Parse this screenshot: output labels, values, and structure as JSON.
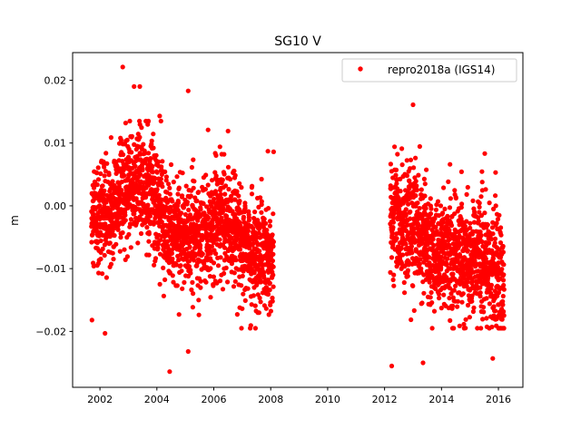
{
  "chart_data": {
    "type": "scatter",
    "title": "SG10 V",
    "xlabel": "",
    "ylabel": "m",
    "xlim": [
      2001.04,
      2016.86
    ],
    "ylim": [
      -0.0289,
      0.0244
    ],
    "xticks": [
      2002,
      2004,
      2006,
      2008,
      2010,
      2012,
      2014,
      2016
    ],
    "xtick_labels": [
      "2002",
      "2004",
      "2006",
      "2008",
      "2010",
      "2012",
      "2014",
      "2016"
    ],
    "yticks": [
      0.02,
      0.01,
      0.0,
      -0.01,
      -0.02
    ],
    "ytick_labels": [
      "0.02",
      "0.01",
      "0.00",
      "−0.01",
      "−0.02"
    ],
    "grid": false,
    "legend": {
      "placement": "top-right",
      "entries": [
        "repro2018a (IGS14)"
      ]
    },
    "series": [
      {
        "name": "repro2018a (IGS14)",
        "color": "#ff0000",
        "note_segments": "daily position residuals summarised as segments (start, end, mean_start, mean_end, std)",
        "segments": [
          [
            2001.7,
            2002.5,
            -0.003,
            -0.001,
            0.0042
          ],
          [
            2002.5,
            2003.4,
            0.001,
            0.004,
            0.0042
          ],
          [
            2003.4,
            2004.2,
            0.004,
            0.0,
            0.0045
          ],
          [
            2004.2,
            2006.0,
            -0.004,
            -0.005,
            0.0042
          ],
          [
            2006.0,
            2006.9,
            -0.002,
            -0.003,
            0.0045
          ],
          [
            2006.9,
            2008.1,
            -0.006,
            -0.009,
            0.0045
          ],
          [
            2012.2,
            2013.5,
            -0.003,
            -0.004,
            0.005
          ],
          [
            2013.5,
            2015.3,
            -0.007,
            -0.008,
            0.0045
          ],
          [
            2015.3,
            2016.2,
            -0.008,
            -0.012,
            0.005
          ]
        ],
        "outliers": [
          [
            2002.8,
            0.0221
          ],
          [
            2003.2,
            0.019
          ],
          [
            2003.4,
            0.019
          ],
          [
            2005.1,
            0.0183
          ],
          [
            2004.45,
            -0.0264
          ],
          [
            2005.1,
            -0.0232
          ],
          [
            2012.25,
            -0.0255
          ],
          [
            2013.0,
            0.0161
          ],
          [
            2013.35,
            -0.025
          ],
          [
            2001.72,
            -0.0182
          ],
          [
            2002.18,
            -0.0203
          ],
          [
            2015.8,
            -0.0243
          ],
          [
            2007.9,
            0.0087
          ],
          [
            2008.1,
            0.0086
          ],
          [
            2014.3,
            0.0066
          ],
          [
            2015.9,
            0.0053
          ],
          [
            2006.5,
            0.0119
          ],
          [
            2005.8,
            0.0121
          ],
          [
            2004.1,
            0.0143
          ],
          [
            2012.35,
            0.0094
          ]
        ]
      }
    ]
  }
}
